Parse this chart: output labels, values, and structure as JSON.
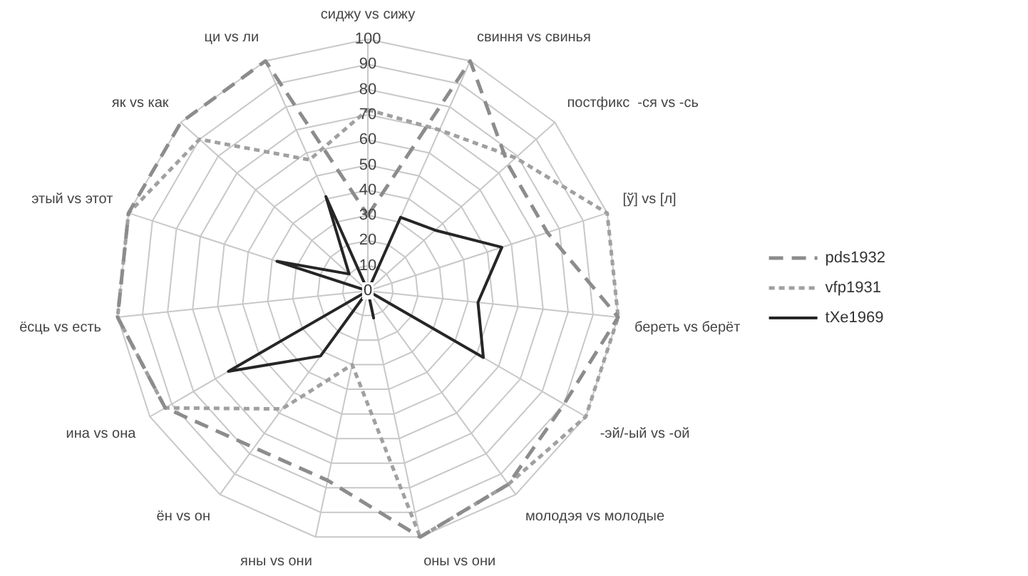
{
  "chart_data": {
    "type": "radar",
    "categories": [
      "сиджу vs сижу",
      "свиння vs свинья",
      "постфикс  -ся vs -сь",
      "[ў] vs [л]",
      "береть vs берёт",
      "-эй/-ый vs -ой",
      "молодэя vs молодые",
      "оны vs они",
      "яны vs они",
      "ён vs он",
      "ина vs она",
      "ёсць vs есть",
      "этый vs этот",
      "як vs как",
      "ци vs ли"
    ],
    "series": [
      {
        "name": "pds1932",
        "color": "#8c8c8c",
        "line_style": "dashed",
        "values": [
          30,
          100,
          75,
          75,
          100,
          90,
          95,
          100,
          77,
          77,
          93,
          100,
          100,
          100,
          100
        ]
      },
      {
        "name": "vfp1931",
        "color": "#a0a0a0",
        "line_style": "dotted",
        "values": [
          72,
          70,
          79,
          100,
          100,
          100,
          95,
          100,
          30,
          58,
          93,
          100,
          100,
          90,
          57
        ]
      },
      {
        "name": "tXe1969",
        "color": "#262626",
        "line_style": "solid",
        "values": [
          0,
          32,
          36,
          56,
          44,
          53,
          0,
          11,
          0,
          32,
          64,
          0,
          38,
          10,
          41
        ]
      }
    ],
    "ylim": [
      0,
      100
    ],
    "yticks": [
      0,
      10,
      20,
      30,
      40,
      50,
      60,
      70,
      80,
      90,
      100
    ],
    "grid": true,
    "legend": "right",
    "marker": "none"
  }
}
